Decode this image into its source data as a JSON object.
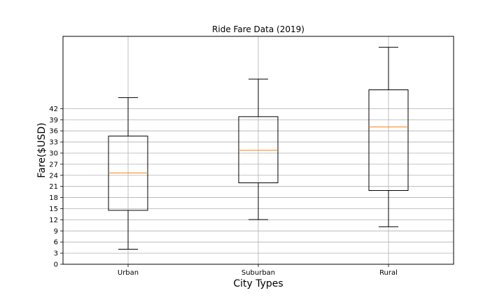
{
  "chart_data": {
    "type": "boxplot",
    "title": "Ride Fare Data (2019)",
    "xlabel": "City Types",
    "ylabel": "Fare($USD)",
    "categories": [
      "Urban",
      "Suburban",
      "Rural"
    ],
    "boxes": [
      {
        "category": "Urban",
        "whisker_low": 4.05,
        "q1": 14.55,
        "median": 24.64,
        "q3": 34.58,
        "whisker_high": 44.97
      },
      {
        "category": "Suburban",
        "whisker_low": 12.05,
        "q1": 21.97,
        "median": 30.75,
        "q3": 39.83,
        "whisker_high": 49.96
      },
      {
        "category": "Rural",
        "whisker_low": 10.11,
        "q1": 19.9,
        "median": 37.05,
        "q3": 47.07,
        "whisker_high": 58.55
      }
    ],
    "yticks": [
      0,
      3,
      6,
      9,
      12,
      15,
      18,
      21,
      24,
      27,
      30,
      33,
      36,
      39,
      42
    ],
    "ylim": [
      0,
      61.5
    ],
    "grid": true,
    "median_color": "#ff7f0e",
    "box_color": "#000000",
    "grid_color": "#b0b0b0"
  }
}
